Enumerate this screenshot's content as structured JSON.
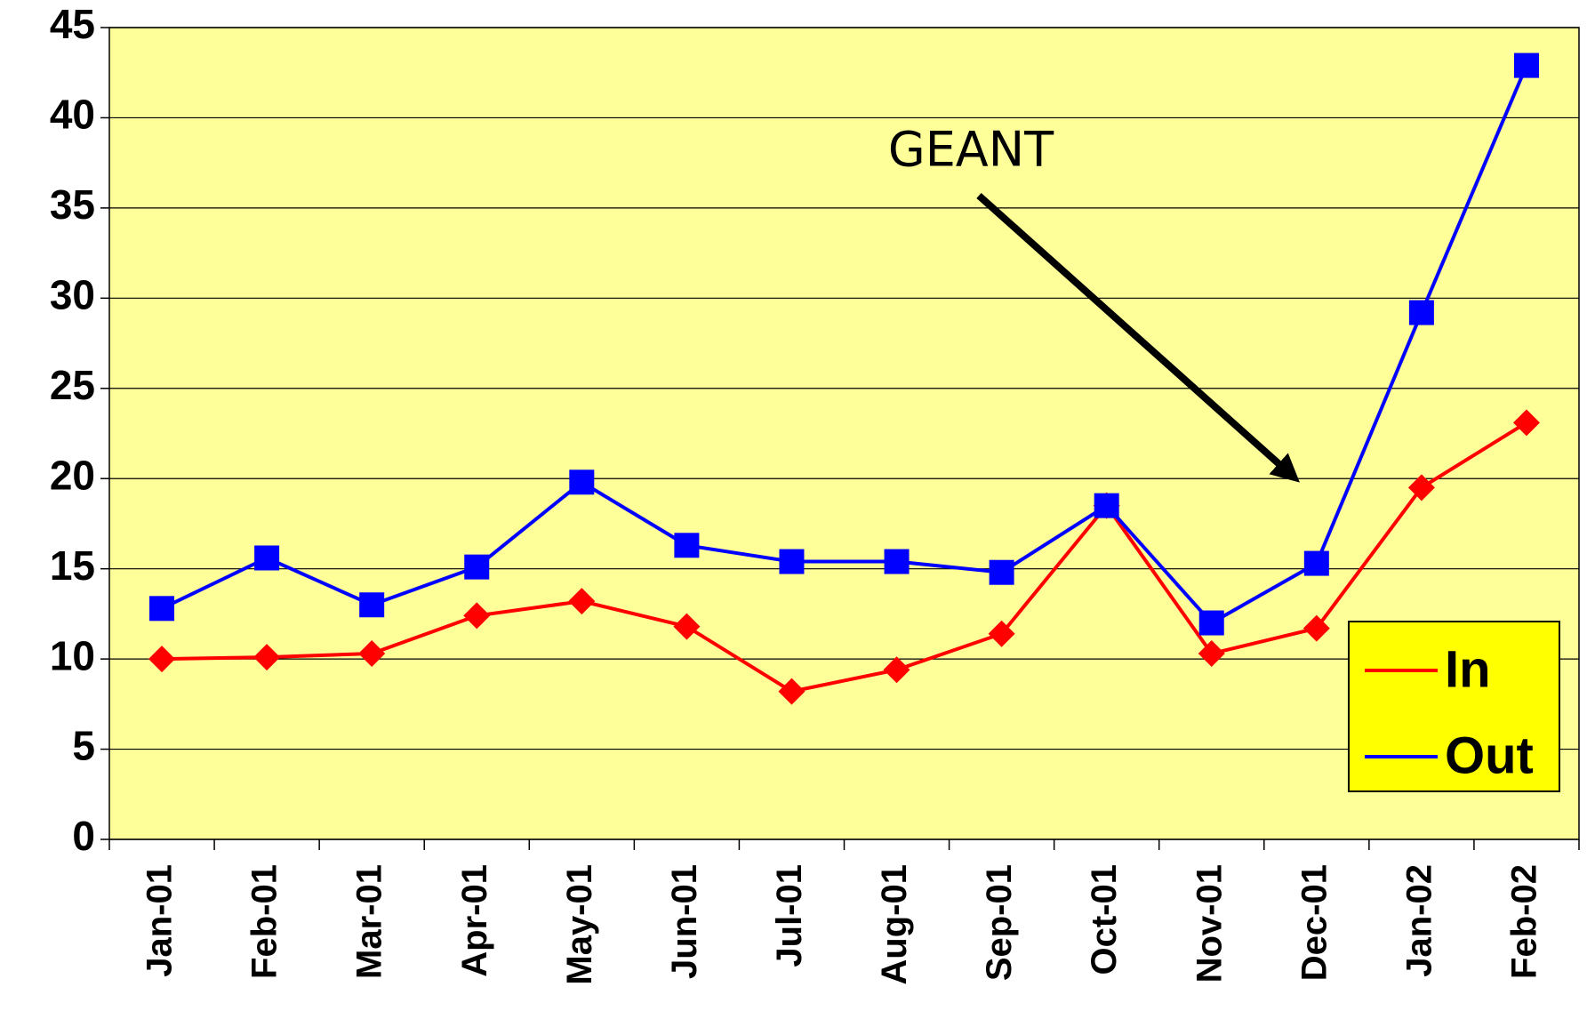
{
  "chart_data": {
    "type": "line",
    "categories": [
      "Jan-01",
      "Feb-01",
      "Mar-01",
      "Apr-01",
      "May-01",
      "Jun-01",
      "Jul-01",
      "Aug-01",
      "Sep-01",
      "Oct-01",
      "Nov-01",
      "Dec-01",
      "Jan-02",
      "Feb-02"
    ],
    "series": [
      {
        "name": "In",
        "color": "#ff0000",
        "marker": "diamond",
        "values": [
          10.0,
          10.1,
          10.3,
          12.4,
          13.2,
          11.8,
          8.2,
          9.4,
          11.4,
          18.5,
          10.3,
          11.7,
          19.5,
          23.1
        ]
      },
      {
        "name": "Out",
        "color": "#0000ff",
        "marker": "square",
        "values": [
          12.8,
          15.6,
          13.0,
          15.1,
          19.8,
          16.3,
          15.4,
          15.4,
          14.8,
          18.5,
          12.0,
          15.3,
          29.2,
          42.9
        ]
      }
    ],
    "ylim": [
      0,
      45
    ],
    "yticks": [
      0,
      5,
      10,
      15,
      20,
      25,
      30,
      35,
      40,
      45
    ],
    "grid": true,
    "annotation": "GEANT",
    "legend": "lower right"
  }
}
